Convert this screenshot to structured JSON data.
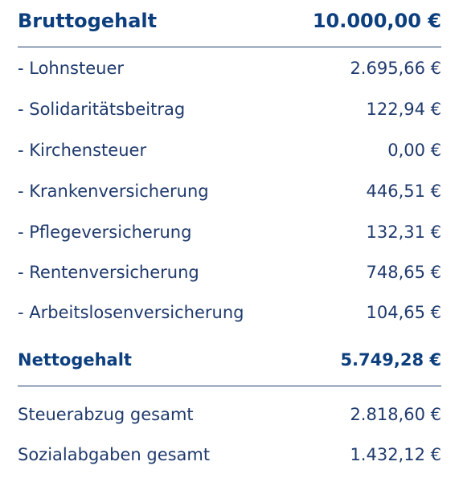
{
  "gross": {
    "label": "Bruttogehalt",
    "value": "10.000,00 €"
  },
  "deductions": [
    {
      "label": "- Lohnsteuer",
      "value": "2.695,66 €"
    },
    {
      "label": "- Solidaritätsbeitrag",
      "value": "122,94 €"
    },
    {
      "label": "- Kirchensteuer",
      "value": "0,00 €"
    },
    {
      "label": "- Krankenversicherung",
      "value": "446,51 €"
    },
    {
      "label": "- Pflegeversicherung",
      "value": "132,31 €"
    },
    {
      "label": "- Rentenversicherung",
      "value": "748,65 €"
    },
    {
      "label": "- Arbeitslosenversicherung",
      "value": "104,65 €"
    }
  ],
  "net": {
    "label": "Nettogehalt",
    "value": "5.749,28 €"
  },
  "summary": [
    {
      "label": "Steuerabzug gesamt",
      "value": "2.818,60 €"
    },
    {
      "label": "Sozialabgaben gesamt",
      "value": "1.432,12 €"
    }
  ],
  "colors": {
    "text": "#1f3a6d",
    "heading": "#0d3f7f",
    "background": "#ffffff"
  }
}
